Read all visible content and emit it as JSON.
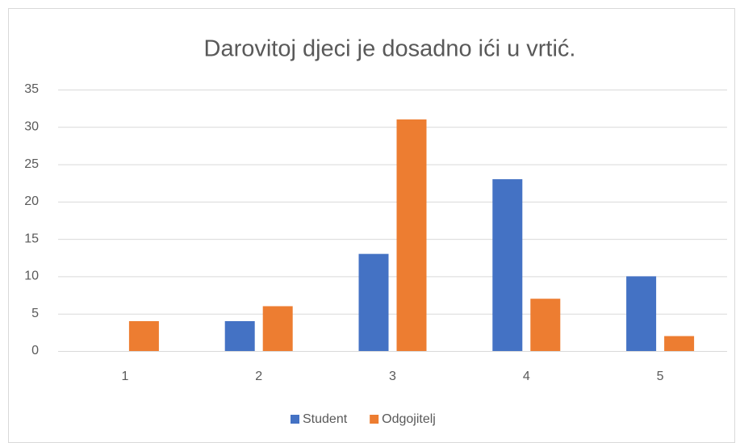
{
  "chart_data": {
    "type": "bar",
    "title": "Darovitoj djeci je dosadno ići u vrtić.",
    "categories": [
      "1",
      "2",
      "3",
      "4",
      "5"
    ],
    "series": [
      {
        "name": "Student",
        "color": "#4472c4",
        "values": [
          0,
          4,
          13,
          23,
          10
        ]
      },
      {
        "name": "Odgojitelj",
        "color": "#ed7d31",
        "values": [
          4,
          6,
          31,
          7,
          2
        ]
      }
    ],
    "ylim": [
      0,
      35
    ],
    "yticks": [
      0,
      5,
      10,
      15,
      20,
      25,
      30,
      35
    ],
    "grid": true,
    "legend": "bottom"
  }
}
